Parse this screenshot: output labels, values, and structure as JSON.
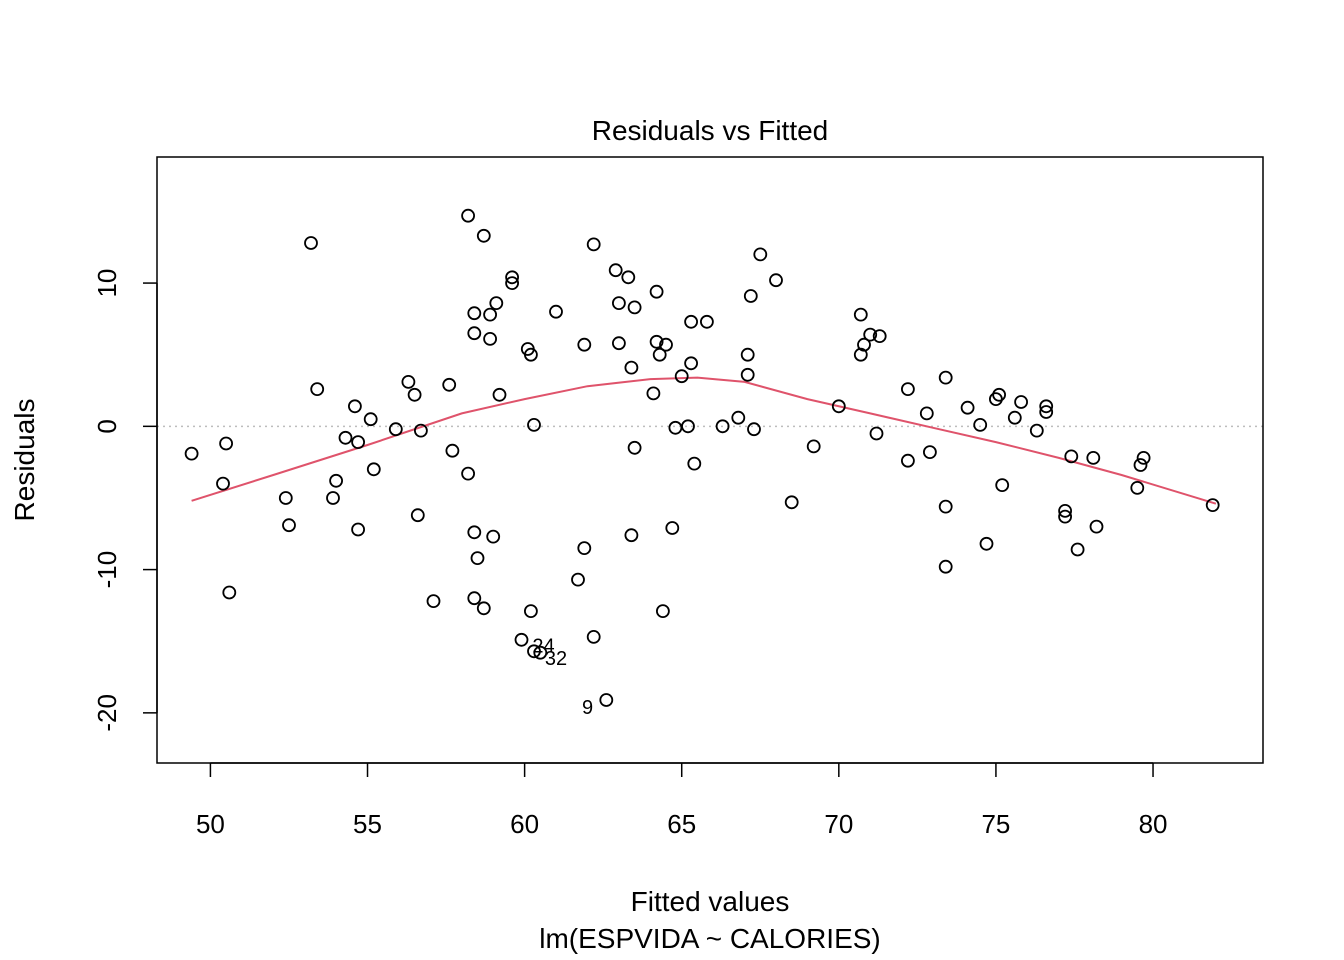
{
  "chart_data": {
    "type": "scatter",
    "title": "Residuals vs Fitted",
    "xlabel": "Fitted values",
    "subtitle": "lm(ESPVIDA ~ CALORIES)",
    "ylabel": "Residuals",
    "xlim": [
      48.3,
      83.5
    ],
    "ylim": [
      -23.5,
      18.8
    ],
    "xticks": [
      50,
      55,
      60,
      65,
      70,
      75,
      80
    ],
    "yticks": [
      -20,
      -10,
      0,
      10
    ],
    "reference_line": {
      "y": 0,
      "style": "dotted",
      "color": "#bdbdbd"
    },
    "smoother": {
      "color": "#df536b",
      "x": [
        49.4,
        52,
        55,
        58,
        60,
        62,
        64,
        65.5,
        67,
        69,
        71,
        73,
        75,
        77,
        79,
        82
      ],
      "y": [
        -5.2,
        -3.4,
        -1.3,
        0.9,
        1.9,
        2.8,
        3.3,
        3.4,
        3.1,
        1.9,
        0.9,
        -0.1,
        -1.1,
        -2.2,
        -3.4,
        -5.4
      ]
    },
    "points": [
      {
        "x": 49.4,
        "y": -1.9
      },
      {
        "x": 50.4,
        "y": -4.0
      },
      {
        "x": 50.5,
        "y": -1.2
      },
      {
        "x": 50.6,
        "y": -11.6
      },
      {
        "x": 52.4,
        "y": -5.0
      },
      {
        "x": 52.5,
        "y": -6.9
      },
      {
        "x": 53.2,
        "y": 12.8
      },
      {
        "x": 53.4,
        "y": 2.6
      },
      {
        "x": 53.9,
        "y": -5.0
      },
      {
        "x": 54.0,
        "y": -3.8
      },
      {
        "x": 54.3,
        "y": -0.8
      },
      {
        "x": 54.6,
        "y": 1.4
      },
      {
        "x": 54.7,
        "y": -1.1
      },
      {
        "x": 54.7,
        "y": -7.2
      },
      {
        "x": 55.1,
        "y": 0.5
      },
      {
        "x": 55.2,
        "y": -3.0
      },
      {
        "x": 55.9,
        "y": -0.2
      },
      {
        "x": 56.3,
        "y": 3.1
      },
      {
        "x": 56.5,
        "y": 2.2
      },
      {
        "x": 56.6,
        "y": -6.2
      },
      {
        "x": 56.7,
        "y": -0.3
      },
      {
        "x": 57.1,
        "y": -12.2
      },
      {
        "x": 57.6,
        "y": 2.9
      },
      {
        "x": 57.7,
        "y": -1.7
      },
      {
        "x": 58.2,
        "y": 14.7
      },
      {
        "x": 58.2,
        "y": -3.3
      },
      {
        "x": 58.4,
        "y": 6.5
      },
      {
        "x": 58.4,
        "y": 7.9
      },
      {
        "x": 58.4,
        "y": -12.0
      },
      {
        "x": 58.4,
        "y": -7.4
      },
      {
        "x": 58.5,
        "y": -9.2
      },
      {
        "x": 58.7,
        "y": 13.3
      },
      {
        "x": 58.7,
        "y": -12.7
      },
      {
        "x": 58.9,
        "y": 6.1
      },
      {
        "x": 58.9,
        "y": 7.8
      },
      {
        "x": 59.0,
        "y": -7.7
      },
      {
        "x": 59.1,
        "y": 8.6
      },
      {
        "x": 59.2,
        "y": 2.2
      },
      {
        "x": 59.6,
        "y": 10.4
      },
      {
        "x": 59.6,
        "y": 10.0
      },
      {
        "x": 59.9,
        "y": -14.9
      },
      {
        "x": 60.1,
        "y": 5.4
      },
      {
        "x": 60.2,
        "y": 5.0
      },
      {
        "x": 60.2,
        "y": -12.9
      },
      {
        "x": 60.3,
        "y": 0.1
      },
      {
        "x": 61.0,
        "y": 8.0
      },
      {
        "x": 61.7,
        "y": -10.7
      },
      {
        "x": 61.9,
        "y": 5.7
      },
      {
        "x": 61.9,
        "y": -8.5
      },
      {
        "x": 62.2,
        "y": 12.7
      },
      {
        "x": 62.2,
        "y": -14.7
      },
      {
        "x": 62.6,
        "y": -19.1
      },
      {
        "x": 62.9,
        "y": 10.9
      },
      {
        "x": 63.0,
        "y": 8.6
      },
      {
        "x": 63.0,
        "y": 5.8
      },
      {
        "x": 63.3,
        "y": 10.4
      },
      {
        "x": 63.4,
        "y": 4.1
      },
      {
        "x": 63.4,
        "y": -7.6
      },
      {
        "x": 63.5,
        "y": 8.3
      },
      {
        "x": 63.5,
        "y": -1.5
      },
      {
        "x": 64.1,
        "y": 2.3
      },
      {
        "x": 64.2,
        "y": 9.4
      },
      {
        "x": 64.2,
        "y": 5.9
      },
      {
        "x": 64.3,
        "y": 5.0
      },
      {
        "x": 64.4,
        "y": -12.9
      },
      {
        "x": 64.5,
        "y": 5.7
      },
      {
        "x": 64.7,
        "y": -7.1
      },
      {
        "x": 64.8,
        "y": -0.1
      },
      {
        "x": 65.0,
        "y": 3.5
      },
      {
        "x": 65.2,
        "y": 0.0
      },
      {
        "x": 65.3,
        "y": 7.3
      },
      {
        "x": 65.3,
        "y": 4.4
      },
      {
        "x": 65.4,
        "y": -2.6
      },
      {
        "x": 65.8,
        "y": 7.3
      },
      {
        "x": 66.3,
        "y": 0.0
      },
      {
        "x": 66.8,
        "y": 0.6
      },
      {
        "x": 67.1,
        "y": 5.0
      },
      {
        "x": 67.1,
        "y": 3.6
      },
      {
        "x": 67.2,
        "y": 9.1
      },
      {
        "x": 67.3,
        "y": -0.2
      },
      {
        "x": 67.5,
        "y": 12.0
      },
      {
        "x": 68.0,
        "y": 10.2
      },
      {
        "x": 68.5,
        "y": -5.3
      },
      {
        "x": 69.2,
        "y": -1.4
      },
      {
        "x": 70.0,
        "y": 1.4
      },
      {
        "x": 70.7,
        "y": 7.8
      },
      {
        "x": 70.7,
        "y": 5.0
      },
      {
        "x": 70.8,
        "y": 5.7
      },
      {
        "x": 71.0,
        "y": 6.4
      },
      {
        "x": 71.2,
        "y": -0.5
      },
      {
        "x": 71.3,
        "y": 6.3
      },
      {
        "x": 72.2,
        "y": 2.6
      },
      {
        "x": 72.2,
        "y": -2.4
      },
      {
        "x": 72.8,
        "y": 0.9
      },
      {
        "x": 72.9,
        "y": -1.8
      },
      {
        "x": 73.4,
        "y": 3.4
      },
      {
        "x": 73.4,
        "y": -5.6
      },
      {
        "x": 73.4,
        "y": -9.8
      },
      {
        "x": 74.1,
        "y": 1.3
      },
      {
        "x": 74.5,
        "y": 0.1
      },
      {
        "x": 74.7,
        "y": -8.2
      },
      {
        "x": 75.0,
        "y": 1.9
      },
      {
        "x": 75.1,
        "y": 2.2
      },
      {
        "x": 75.2,
        "y": -4.1
      },
      {
        "x": 75.6,
        "y": 0.6
      },
      {
        "x": 75.8,
        "y": 1.7
      },
      {
        "x": 76.3,
        "y": -0.3
      },
      {
        "x": 76.6,
        "y": 1.4
      },
      {
        "x": 76.6,
        "y": 1.0
      },
      {
        "x": 77.2,
        "y": -5.9
      },
      {
        "x": 77.2,
        "y": -6.3
      },
      {
        "x": 77.4,
        "y": -2.1
      },
      {
        "x": 77.6,
        "y": -8.6
      },
      {
        "x": 78.1,
        "y": -2.2
      },
      {
        "x": 78.2,
        "y": -7.0
      },
      {
        "x": 79.5,
        "y": -4.3
      },
      {
        "x": 79.6,
        "y": -2.7
      },
      {
        "x": 79.7,
        "y": -2.2
      },
      {
        "x": 81.9,
        "y": -5.5
      },
      {
        "x": 60.3,
        "y": -15.7,
        "label": "24"
      },
      {
        "x": 60.5,
        "y": -15.8,
        "label": "32"
      }
    ],
    "point_labels": [
      {
        "text": "24",
        "x": 60.6,
        "y": -15.4
      },
      {
        "text": "32",
        "x": 61.0,
        "y": -16.3
      },
      {
        "text": "9",
        "x": 62.0,
        "y": -19.7
      }
    ]
  }
}
